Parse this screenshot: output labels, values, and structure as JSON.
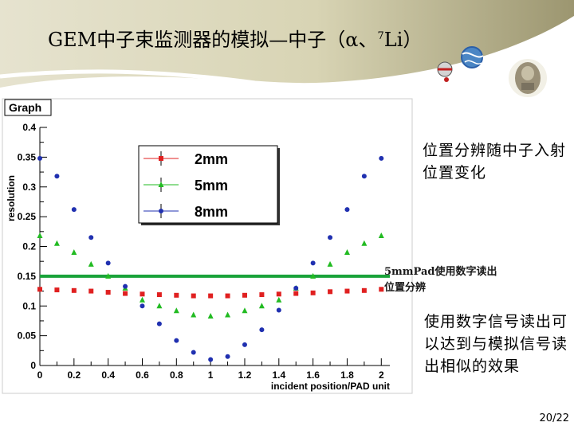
{
  "slide": {
    "title_main": "GEM中子束监测器的模拟—中子（α、",
    "title_sup": "7",
    "title_end": "Li）",
    "note1": "位置分辨随中子入射位置变化",
    "note2": "5mmPad使用数字读出位置分辨",
    "note3": "使用数字信号读出可以达到与模拟信号读出相似的效果",
    "page": "20/22"
  },
  "chart_data": {
    "type": "scatter",
    "title": "Graph",
    "xlabel": "incident position/PAD unit",
    "ylabel": "resolution",
    "xlim": [
      0,
      2.05
    ],
    "ylim": [
      0,
      0.4
    ],
    "xticks": [
      "0",
      "0.2",
      "0.4",
      "0.6",
      "0.8",
      "1",
      "1.2",
      "1.4",
      "1.6",
      "1.8",
      "2"
    ],
    "yticks": [
      "0",
      "0.05",
      "0.1",
      "0.15",
      "0.2",
      "0.25",
      "0.3",
      "0.35",
      "0.4"
    ],
    "legend_position": "top-center",
    "series": [
      {
        "name": "2mm",
        "color": "#e02020",
        "marker": "square",
        "x": [
          0,
          0.1,
          0.2,
          0.3,
          0.4,
          0.5,
          0.6,
          0.7,
          0.8,
          0.9,
          1.0,
          1.1,
          1.2,
          1.3,
          1.4,
          1.5,
          1.6,
          1.7,
          1.8,
          1.9,
          2.0
        ],
        "y": [
          0.128,
          0.127,
          0.126,
          0.125,
          0.123,
          0.121,
          0.12,
          0.119,
          0.118,
          0.117,
          0.117,
          0.117,
          0.118,
          0.119,
          0.12,
          0.121,
          0.122,
          0.124,
          0.125,
          0.126,
          0.128
        ]
      },
      {
        "name": "5mm",
        "color": "#22bb22",
        "marker": "triangle",
        "x": [
          0,
          0.1,
          0.2,
          0.3,
          0.4,
          0.5,
          0.6,
          0.7,
          0.8,
          0.9,
          1.0,
          1.1,
          1.2,
          1.3,
          1.4,
          1.5,
          1.6,
          1.7,
          1.8,
          1.9,
          2.0
        ],
        "y": [
          0.218,
          0.205,
          0.19,
          0.17,
          0.15,
          0.13,
          0.11,
          0.1,
          0.092,
          0.085,
          0.083,
          0.085,
          0.092,
          0.1,
          0.11,
          0.13,
          0.15,
          0.17,
          0.19,
          0.205,
          0.218
        ]
      },
      {
        "name": "8mm",
        "color": "#2030b0",
        "marker": "circle",
        "x": [
          0,
          0.1,
          0.2,
          0.3,
          0.4,
          0.5,
          0.6,
          0.7,
          0.8,
          0.9,
          1.0,
          1.1,
          1.2,
          1.3,
          1.4,
          1.5,
          1.6,
          1.7,
          1.8,
          1.9,
          2.0
        ],
        "y": [
          0.348,
          0.318,
          0.262,
          0.215,
          0.172,
          0.133,
          0.1,
          0.07,
          0.042,
          0.022,
          0.01,
          0.015,
          0.035,
          0.06,
          0.093,
          0.13,
          0.172,
          0.215,
          0.262,
          0.318,
          0.348
        ]
      }
    ],
    "reference_line": {
      "y": 0.15,
      "color": "#1aa33a"
    }
  },
  "colors": {
    "banner_dark": "#8c8660",
    "banner_light": "#d9d5b8",
    "accent_blue": "#2b5fa8"
  }
}
